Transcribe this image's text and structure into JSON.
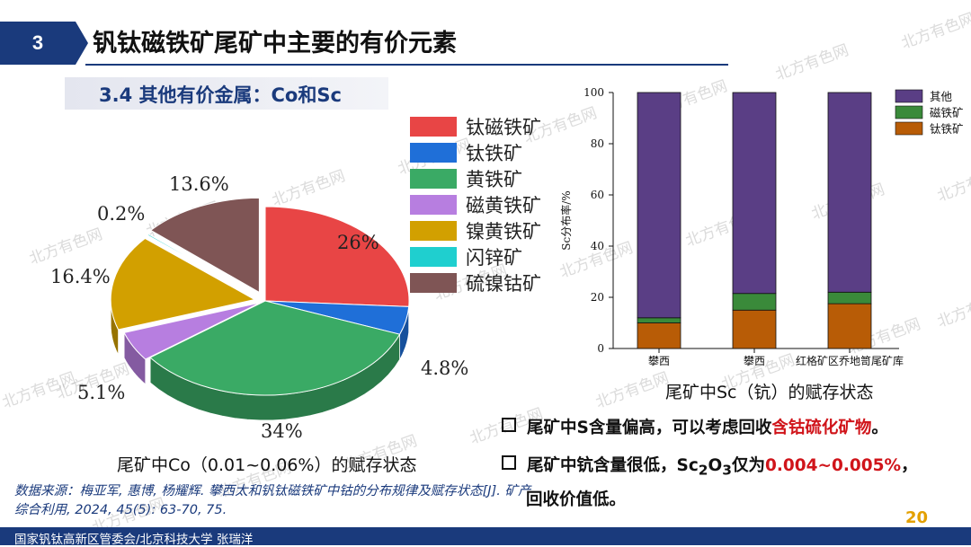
{
  "header": {
    "section_number": "3",
    "title": "钒钛磁铁矿尾矿中主要的有价元素"
  },
  "subtitle": "3.4 其他有价金属：Co和Sc",
  "colors": {
    "brand": "#1a3a7c",
    "accent_red": "#d0141a",
    "page_number": "#e3a000"
  },
  "chart_data": [
    {
      "type": "pie",
      "title": "尾矿中Co（0.01~0.06%）的赋存状态",
      "slices": [
        {
          "label": "钛磁铁矿",
          "value": 26,
          "display": "26%",
          "color": "#e84545"
        },
        {
          "label": "钛铁矿",
          "value": 4.8,
          "display": "4.8%",
          "color": "#1f6fd8"
        },
        {
          "label": "黄铁矿",
          "value": 34,
          "display": "34%",
          "color": "#3aaa65"
        },
        {
          "label": "磁黄铁矿",
          "value": 5.1,
          "display": "5.1%",
          "color": "#b77ee0"
        },
        {
          "label": "镍黄铁矿",
          "value": 16.4,
          "display": "16.4%",
          "color": "#d2a000"
        },
        {
          "label": "闪锌矿",
          "value": 0.2,
          "display": "0.2%",
          "color": "#1fcfcf"
        },
        {
          "label": "硫镍钴矿",
          "value": 13.6,
          "display": "13.6%",
          "color": "#7f5555"
        }
      ]
    },
    {
      "type": "bar",
      "stacked": true,
      "title": "尾矿中Sc（钪）的赋存状态",
      "categories": [
        "攀西",
        "攀西",
        "红格矿区乔地笥尾矿库"
      ],
      "ylabel": "Sc分布率/%",
      "ylim": [
        0,
        100
      ],
      "yticks": [
        0,
        20,
        40,
        60,
        80,
        100
      ],
      "series": [
        {
          "name": "钛铁矿",
          "values": [
            10,
            15,
            17.5
          ],
          "color": "#b85c06"
        },
        {
          "name": "磁铁矿",
          "values": [
            2,
            6.5,
            4.5
          ],
          "color": "#3a8a3a"
        },
        {
          "name": "其他",
          "values": [
            88,
            78.5,
            78
          ],
          "color": "#5a3e85"
        }
      ],
      "legend_position": "top-right",
      "legend_order": [
        "其他",
        "磁铁矿",
        "钛铁矿"
      ]
    }
  ],
  "source_note": "数据来源：梅亚军, 惠博, 杨耀辉. 攀西太和钒钛磁铁矿中钴的分布规律及赋存状态[J]. 矿产综合利用, 2024, 45(5): 63-70, 75.",
  "bullets": {
    "b1_pre": "尾矿中S含量偏高，可以考虑回收",
    "b1_hl": "含钴硫化矿物",
    "b1_post": "。",
    "b2_pre": "尾矿中钪含量很低，Sc",
    "b2_sub1": "2",
    "b2_mid": "O",
    "b2_sub2": "3",
    "b2_mid2": "仅为",
    "b2_hl": "0.004~0.005%",
    "b2_post": "，",
    "b2_line2": "回收价值低。"
  },
  "page_number": "20",
  "footer": "国家钒钛高新区管委会/北京科技大学  张瑞洋",
  "watermark": "北方有色网"
}
